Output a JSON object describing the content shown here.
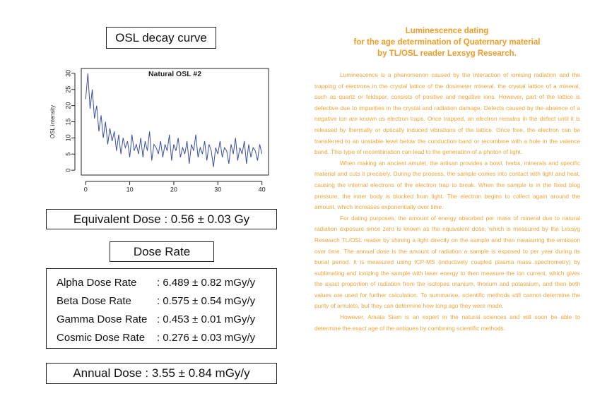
{
  "heading": "OSL decay curve",
  "chart_data": {
    "type": "line",
    "title": "Natural OSL #2",
    "ylabel": "OSL intensity",
    "color": "#3b4ea3",
    "x": [
      0,
      0.5,
      1,
      1.5,
      2,
      2.5,
      3,
      3.5,
      4,
      4.5,
      5,
      5.5,
      6,
      6.5,
      7,
      7.5,
      8,
      8.5,
      9,
      9.5,
      10,
      10.5,
      11,
      11.5,
      12,
      12.5,
      13,
      13.5,
      14,
      14.5,
      15,
      15.5,
      16,
      16.5,
      17,
      17.5,
      18,
      18.5,
      19,
      19.5,
      20,
      20.5,
      21,
      21.5,
      22,
      22.5,
      23,
      23.5,
      24,
      24.5,
      25,
      25.5,
      26,
      26.5,
      27,
      27.5,
      28,
      28.5,
      29,
      29.5,
      30,
      30.5,
      31,
      31.5,
      32,
      32.5,
      33,
      33.5,
      34,
      34.5,
      35,
      35.5,
      36,
      36.5,
      37,
      37.5,
      38,
      38.5,
      39,
      39.5,
      40
    ],
    "values": [
      22,
      30,
      19,
      25,
      16,
      20,
      12,
      17,
      10,
      15,
      8,
      13,
      9,
      12,
      6,
      11,
      5,
      10,
      7,
      9,
      4,
      11,
      6,
      8,
      5,
      10,
      4,
      9,
      6,
      12,
      3,
      8,
      7,
      5,
      9,
      4,
      8,
      6,
      11,
      3,
      8,
      6,
      10,
      4,
      7,
      5,
      9,
      2,
      8,
      6,
      11,
      4,
      7,
      5,
      9,
      3,
      8,
      6,
      1,
      7,
      5,
      9,
      4,
      7,
      6,
      2,
      8,
      5,
      10,
      3,
      7,
      5,
      9,
      2,
      8,
      4,
      7,
      6,
      3,
      8,
      5
    ],
    "xlim": [
      -1,
      41.5
    ],
    "ylim": [
      -1.5,
      31.5
    ],
    "xticks": [
      0,
      10,
      20,
      30,
      40
    ],
    "yticks": [
      0,
      5,
      10,
      15,
      20,
      25,
      30
    ]
  },
  "equivalent_dose": "Equivalent Dose : 0.56 ± 0.03 Gy",
  "dose_rate": {
    "title": "Dose Rate",
    "rows": [
      [
        "Alpha Dose Rate",
        ": 6.489 ± 0.82 mGy/y"
      ],
      [
        "Beta Dose Rate",
        ": 0.575 ± 0.54 mGy/y"
      ],
      [
        "Gamma Dose Rate",
        ": 0.453 ± 0.01 mGy/y"
      ],
      [
        "Cosmic Dose Rate",
        ": 0.276 ± 0.03 mGy/y"
      ]
    ]
  },
  "annual_dose": "Annual Dose : 3.55 ± 0.84 mGy/y",
  "article": {
    "title": [
      "Luminescence dating",
      "for the age determination of Quaternary material",
      "by TL/OSL reader Lexsyg Research."
    ],
    "paragraphs": [
      "Luminescence is a phenomenon caused by the interaction of ionising radiation and the trapping of electrons in the crystal lattice of the dosimeter mineral. the crystal lattice of a mineral, such as quartz or feldspar, consists of positive and negative ions. However, part of the lattice is defective due to impurities in the crystal and radiation damage. Defects caused by the absence of a negative ion are known as electron traps. Once trapped, an electron remains in the defect until it is released by thermally or optically induced vibrations of the lattice. Once free, the electron can be transferred to an unstable level below the conduction band or recombine with a hole in the valence band. This type of recombination can lead to the generation of a photon of light.",
      "When making an ancient amulet, the artisan provides a bowl, herbs, minerals and specific material and cuts it precisely. During the process, the sample comes into contact with light and heat, causing the internal electrons of the electron trap to break. When the sample is in the fixed blog pressure, the inner body is blocked from light. The electron begins to collect again around the amount, which increases exponentially over time.",
      "For dating purposes, the amount of energy absorbed per mass of mineral due to natural radiation exposure since zero is known as the equivalent dose, which is measured by the Lexsyg Research TL/OSL reader by shining a light directly on the sample and then measuring the emission over time. The annual dose is the amount of radiation a sample is exposed to per year during its burial period. It is measured using ICP-MS (inductively coupled plasma mass spectrometry) by sublimating and ionizing the sample with laser energy to then measure the ion current, which gives the exact proportion of radiation from the isotopes uranium, thorium and potassium, and then both values are used for further calculation. To summarise, scientific methods still cannot determine the purity of amulets, but they can determine how long ago they were made.",
      "However, Amata Siam is an expert in the natural sciences and will soon be able to determine the exact age of the antiques by combining scientific methods."
    ]
  }
}
